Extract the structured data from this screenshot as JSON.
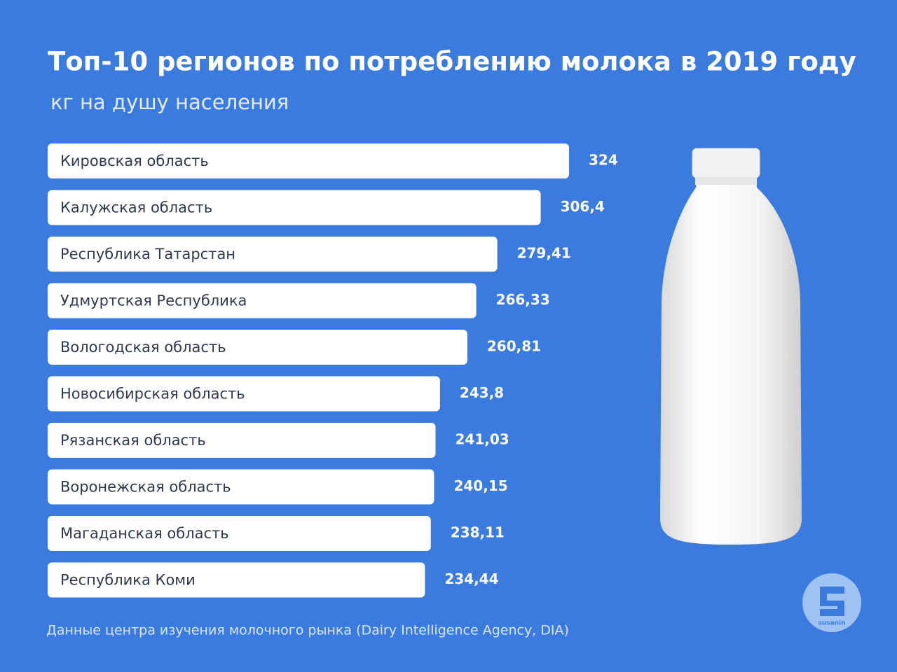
{
  "chart_data": {
    "type": "bar",
    "orientation": "horizontal",
    "title": "Топ-10 регионов по потреблению молока в 2019 году",
    "subtitle": "кг на душу населения",
    "categories": [
      "Кировская область",
      "Калужская область",
      "Республика Татарстан",
      "Удмуртская Республика",
      "Вологодская область",
      "Новосибирская область",
      "Рязанская область",
      "Воронежская область",
      "Магаданская область",
      "Республика Коми"
    ],
    "values": [
      324,
      306.4,
      279.41,
      266.33,
      260.81,
      243.8,
      241.03,
      240.15,
      238.11,
      234.44
    ],
    "value_labels": [
      "324",
      "306,4",
      "279,41",
      "266,33",
      "260,81",
      "243,8",
      "241,03",
      "240,15",
      "238,11",
      "234,44"
    ],
    "color": "#ffffff",
    "source": "Данные центра изучения молочного рынка (Dairy Intelligence Agency, DIA)",
    "logo": "susanin"
  }
}
